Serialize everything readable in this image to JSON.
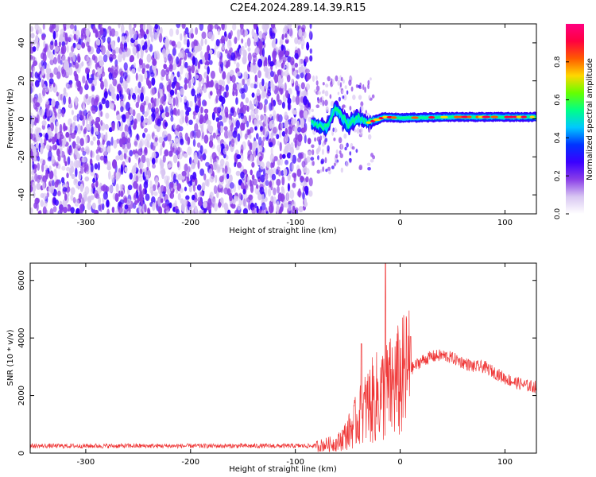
{
  "title": "C2E4.2024.289.14.39.R15",
  "chart_data": [
    {
      "type": "heatmap",
      "xlabel": "Height of straight line (km)",
      "ylabel": "Frequency (Hz)",
      "xlim": [
        -353,
        130
      ],
      "ylim": [
        -50,
        50
      ],
      "x_ticks": [
        -300,
        -200,
        -100,
        0,
        100
      ],
      "y_ticks": [
        -40,
        -20,
        0,
        20,
        40
      ],
      "noise_region_x": [
        -353,
        -85
      ],
      "transition_region_x": [
        -85,
        -25
      ],
      "signal_band": [
        {
          "x": -85,
          "center_hz": -2,
          "halfwidth_hz": 3
        },
        {
          "x": -70,
          "center_hz": -5,
          "halfwidth_hz": 4
        },
        {
          "x": -62,
          "center_hz": 6,
          "halfwidth_hz": 4
        },
        {
          "x": -50,
          "center_hz": -3,
          "halfwidth_hz": 5
        },
        {
          "x": -40,
          "center_hz": 1,
          "halfwidth_hz": 4
        },
        {
          "x": -30,
          "center_hz": -2,
          "halfwidth_hz": 3
        },
        {
          "x": -15,
          "center_hz": 1,
          "halfwidth_hz": 2.5
        },
        {
          "x": 0,
          "center_hz": 0.5,
          "halfwidth_hz": 2.5
        },
        {
          "x": 50,
          "center_hz": 1,
          "halfwidth_hz": 2.5
        },
        {
          "x": 100,
          "center_hz": 1,
          "halfwidth_hz": 2.5
        },
        {
          "x": 130,
          "center_hz": 1,
          "halfwidth_hz": 2.5
        }
      ],
      "colorbar": {
        "label": "Normalized spectral amplitude",
        "range": [
          0,
          1
        ],
        "ticks": [
          "0.0",
          "0.2",
          "0.4",
          "0.6",
          "0.8"
        ],
        "colors": [
          "#ffffff",
          "#d8c6f2",
          "#8a3ee8",
          "#3a00ff",
          "#0033ff",
          "#00c8ff",
          "#00ff88",
          "#66ff00",
          "#ffd700",
          "#ff5a00",
          "#ff0040",
          "#ff0080"
        ]
      }
    },
    {
      "type": "line",
      "xlabel": "Height of straight line (km)",
      "ylabel": "SNR (10 * v/v)",
      "xlim": [
        -353,
        130
      ],
      "ylim": [
        0,
        6600
      ],
      "x_ticks": [
        -300,
        -200,
        -100,
        0,
        100
      ],
      "y_ticks": [
        0,
        2000,
        4000,
        6000
      ],
      "color": "#ef3535",
      "trend": [
        {
          "x": -353,
          "y": 250
        },
        {
          "x": -250,
          "y": 250
        },
        {
          "x": -150,
          "y": 250
        },
        {
          "x": -100,
          "y": 250
        },
        {
          "x": -80,
          "y": 250
        },
        {
          "x": -60,
          "y": 350
        },
        {
          "x": -50,
          "y": 700
        },
        {
          "x": -40,
          "y": 1200
        },
        {
          "x": -30,
          "y": 1700
        },
        {
          "x": -20,
          "y": 2000
        },
        {
          "x": -10,
          "y": 2200
        },
        {
          "x": 0,
          "y": 2500
        },
        {
          "x": 10,
          "y": 2900
        },
        {
          "x": 20,
          "y": 3200
        },
        {
          "x": 30,
          "y": 3350
        },
        {
          "x": 40,
          "y": 3400
        },
        {
          "x": 50,
          "y": 3300
        },
        {
          "x": 60,
          "y": 3150
        },
        {
          "x": 70,
          "y": 3000
        },
        {
          "x": 80,
          "y": 3000
        },
        {
          "x": 90,
          "y": 2800
        },
        {
          "x": 100,
          "y": 2600
        },
        {
          "x": 110,
          "y": 2450
        },
        {
          "x": 120,
          "y": 2350
        },
        {
          "x": 130,
          "y": 2300
        }
      ],
      "peaks": [
        {
          "x": -37,
          "y": 3800
        },
        {
          "x": -14,
          "y": 6600
        },
        {
          "x": 10,
          "y": 4050
        }
      ]
    }
  ]
}
